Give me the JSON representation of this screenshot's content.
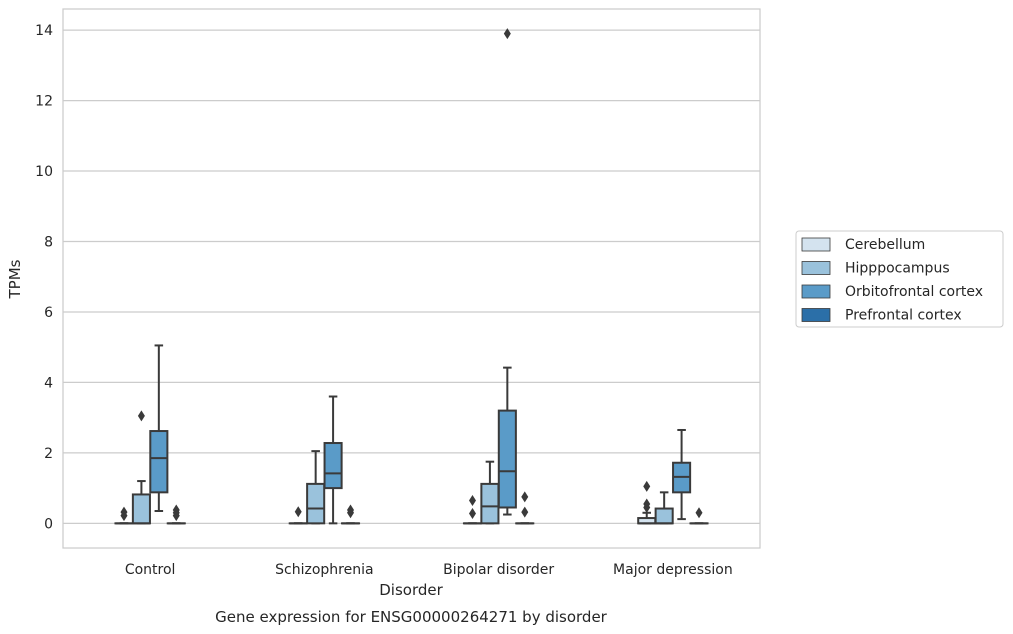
{
  "chart_data": {
    "type": "box",
    "title": "",
    "xlabel": "Disorder",
    "ylabel": "TPMs",
    "caption": "Gene expression for ENSG00000264271 by disorder",
    "ylim": [
      -0.7,
      14.6
    ],
    "yticks": [
      0,
      2,
      4,
      6,
      8,
      10,
      12,
      14
    ],
    "grid": "horizontal",
    "legend_position": "right",
    "categories": [
      "Control",
      "Schizophrenia",
      "Bipolar disorder",
      "Major depression"
    ],
    "series": [
      {
        "name": "Cerebellum",
        "color": "#d4e3ef",
        "boxes": [
          {
            "min": 0,
            "q1": 0,
            "median": 0,
            "q3": 0,
            "max": 0,
            "outliers": [
              0.22,
              0.32
            ]
          },
          {
            "min": 0,
            "q1": 0,
            "median": 0,
            "q3": 0,
            "max": 0,
            "outliers": [
              0.33
            ]
          },
          {
            "min": 0,
            "q1": 0,
            "median": 0,
            "q3": 0,
            "max": 0,
            "outliers": [
              0.28,
              0.65
            ]
          },
          {
            "min": 0,
            "q1": 0,
            "median": 0,
            "q3": 0.15,
            "max": 0.3,
            "outliers": [
              0.45,
              0.55,
              1.05
            ]
          }
        ]
      },
      {
        "name": "Hipppocampus",
        "color": "#9ac2dc",
        "boxes": [
          {
            "min": 0,
            "q1": 0,
            "median": 0,
            "q3": 0.82,
            "max": 1.2,
            "outliers": [
              3.05
            ]
          },
          {
            "min": 0,
            "q1": 0,
            "median": 0.42,
            "q3": 1.12,
            "max": 2.05,
            "outliers": []
          },
          {
            "min": 0,
            "q1": 0,
            "median": 0.48,
            "q3": 1.12,
            "max": 1.75,
            "outliers": []
          },
          {
            "min": 0,
            "q1": 0,
            "median": 0,
            "q3": 0.42,
            "max": 0.88,
            "outliers": []
          }
        ]
      },
      {
        "name": "Orbitofrontal cortex",
        "color": "#5a9bc8",
        "boxes": [
          {
            "min": 0.35,
            "q1": 0.88,
            "median": 1.85,
            "q3": 2.62,
            "max": 5.05,
            "outliers": []
          },
          {
            "min": 0,
            "q1": 1.0,
            "median": 1.42,
            "q3": 2.28,
            "max": 3.6,
            "outliers": []
          },
          {
            "min": 0.25,
            "q1": 0.45,
            "median": 1.48,
            "q3": 3.2,
            "max": 4.42,
            "outliers": [
              13.9
            ]
          },
          {
            "min": 0.12,
            "q1": 0.88,
            "median": 1.32,
            "q3": 1.72,
            "max": 2.65,
            "outliers": []
          }
        ]
      },
      {
        "name": "Prefrontal cortex",
        "color": "#2b6fa8",
        "boxes": [
          {
            "min": 0,
            "q1": 0,
            "median": 0,
            "q3": 0,
            "max": 0,
            "outliers": [
              0.22,
              0.3,
              0.38
            ]
          },
          {
            "min": 0,
            "q1": 0,
            "median": 0,
            "q3": 0,
            "max": 0,
            "outliers": [
              0.3,
              0.38
            ]
          },
          {
            "min": 0,
            "q1": 0,
            "median": 0,
            "q3": 0,
            "max": 0,
            "outliers": [
              0.32,
              0.75
            ]
          },
          {
            "min": 0,
            "q1": 0,
            "median": 0,
            "q3": 0,
            "max": 0,
            "outliers": [
              0.3
            ]
          }
        ]
      }
    ]
  }
}
